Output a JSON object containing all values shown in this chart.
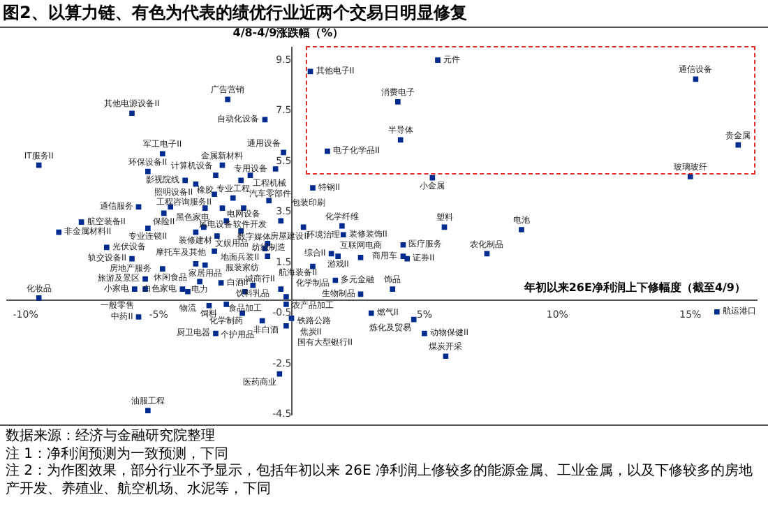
{
  "chart_data": {
    "type": "scatter",
    "title": "图2、以算力链、有色为代表的绩优行业近两个交易日明显修复",
    "xlabel": "年初以来26E净利润上下修幅度（截至4/9）",
    "ylabel": "4/8-4/9涨跌幅（%）",
    "color": "#002b8f",
    "marker": "square",
    "xlim": [
      -10.7,
      17.5
    ],
    "ylim": [
      -4.5,
      10
    ],
    "xticks": [
      {
        "value": -10,
        "label": "-10%"
      },
      {
        "value": -5,
        "label": "-5%"
      },
      {
        "value": 5,
        "label": "5%"
      },
      {
        "value": 10,
        "label": "10%"
      },
      {
        "value": 15,
        "label": "15%"
      }
    ],
    "yticks": [
      -4.5,
      -2.5,
      -0.5,
      1.5,
      3.5,
      5.5,
      7.5,
      9.5
    ],
    "x": [
      0.71,
      -2.4,
      -6.0,
      -1.0,
      1.35,
      -0.3,
      -4.85,
      -9.5,
      -2.6,
      -0.6,
      -5.4,
      -2.85,
      -1.55,
      -1.9,
      -4.0,
      -3.6,
      0.8,
      -2.9,
      5.5,
      15.2,
      4.0,
      4.1,
      16.8,
      5.3,
      15.0,
      -2.2,
      -0.85,
      -5.75,
      -4.55,
      -3.25,
      -2.6,
      -1.8,
      -4.8,
      -7.9,
      -2.45,
      -0.4,
      -5.4,
      0.45,
      1.9,
      1.95,
      -8.75,
      -3.6,
      -3.3,
      -2.8,
      -1.9,
      -6.95,
      -0.9,
      1.5,
      1.75,
      -2.9,
      -1.0,
      -0.9,
      2.6,
      -6.0,
      -3.6,
      -3.25,
      0.8,
      -4.85,
      -5.5,
      -5.9,
      -3.45,
      -2.65,
      1.65,
      -4.1,
      -5.5,
      -1.45,
      2.6,
      -3.9,
      -1.75,
      -0.4,
      -9.5,
      -0.2,
      -3.1,
      -2.45,
      -0.2,
      3.0,
      -5.75,
      -1.85,
      -1.1,
      0,
      -2.85,
      -0.2,
      -0.45,
      -5.4,
      5.0,
      5.8,
      4.6,
      16.0,
      5.75,
      8.65,
      4.2,
      7.35,
      4.2,
      4.35,
      3.8
    ],
    "values": [
      9.05,
      7.95,
      7.4,
      7.15,
      5.9,
      5.85,
      5.8,
      5.35,
      5.35,
      5.2,
      5.1,
      4.95,
      4.95,
      4.75,
      4.75,
      4.6,
      4.45,
      4.2,
      9.5,
      8.75,
      7.85,
      6.35,
      6.15,
      4.85,
      4.9,
      4.05,
      3.95,
      3.7,
      3.7,
      3.65,
      3.65,
      3.65,
      3.45,
      3.1,
      3.15,
      3.15,
      2.85,
      2.9,
      2.95,
      2.6,
      2.7,
      2.7,
      2.9,
      2.55,
      2.75,
      2.1,
      2.25,
      1.85,
      1.75,
      1.95,
      2.05,
      1.75,
      1.7,
      1.65,
      1.45,
      1.4,
      1.35,
      1.25,
      0.85,
      0.45,
      0.75,
      0.7,
      0.8,
      0.45,
      0.45,
      0.6,
      0.25,
      0.35,
      0.35,
      0.45,
      0.1,
      0.15,
      -0.2,
      -0.15,
      -0.15,
      -0.5,
      -0.65,
      -0.5,
      -0.8,
      -0.7,
      -1.3,
      -1.0,
      -2.9,
      -4.35,
      -1.3,
      -2.2,
      -0.75,
      -0.45,
      2.9,
      2.8,
      2.2,
      1.85,
      1.75,
      1.65,
      0.45
    ],
    "annotations": [
      {
        "text": "其他电子II",
        "x": 0.71,
        "y": 9.05
      },
      {
        "text": "广告营销",
        "x": -2.4,
        "y": 7.95
      },
      {
        "text": "其他电源设备II",
        "x": -6.0,
        "y": 7.4
      },
      {
        "text": "自动化设备",
        "x": -1.0,
        "y": 7.15
      },
      {
        "text": "电子化学品II",
        "x": 1.35,
        "y": 5.9
      },
      {
        "text": "通用设备",
        "x": -0.3,
        "y": 5.85
      },
      {
        "text": "军工电子II",
        "x": -4.85,
        "y": 5.8
      },
      {
        "text": "IT服务II",
        "x": -9.5,
        "y": 5.35
      },
      {
        "text": "金属新材料",
        "x": -2.6,
        "y": 5.35
      },
      {
        "text": "专用设备",
        "x": -0.6,
        "y": 5.2
      },
      {
        "text": "环保设备II",
        "x": -5.4,
        "y": 5.1
      },
      {
        "text": "计算机设备",
        "x": -2.85,
        "y": 4.95
      },
      {
        "text": "工程机械",
        "x": -1.55,
        "y": 4.95
      },
      {
        "text": "汽车零部件",
        "x": -1.9,
        "y": 4.75
      },
      {
        "text": "影视院线",
        "x": -4.0,
        "y": 4.75
      },
      {
        "text": "照明设备II",
        "x": -3.6,
        "y": 4.6
      },
      {
        "text": "特钢II",
        "x": 0.8,
        "y": 4.45
      },
      {
        "text": "工程咨询服务II",
        "x": -2.9,
        "y": 4.2
      },
      {
        "text": "元件",
        "x": 5.5,
        "y": 9.5
      },
      {
        "text": "通信设备",
        "x": 15.2,
        "y": 8.75
      },
      {
        "text": "消费电子",
        "x": 4.0,
        "y": 7.85
      },
      {
        "text": "半导体",
        "x": 4.1,
        "y": 6.35
      },
      {
        "text": "贵金属",
        "x": 16.8,
        "y": 6.15
      },
      {
        "text": "小金属",
        "x": 5.3,
        "y": 4.85
      },
      {
        "text": "玻璃玻纤",
        "x": 15.0,
        "y": 4.9
      },
      {
        "text": "专业工程",
        "x": -2.2,
        "y": 4.05
      },
      {
        "text": "电网设备",
        "x": -0.85,
        "y": 3.95
      },
      {
        "text": "通信服务",
        "x": -5.75,
        "y": 3.7
      },
      {
        "text": "黑色家电",
        "x": -4.55,
        "y": 3.7
      },
      {
        "text": "橡胶",
        "x": -3.25,
        "y": 3.65
      },
      {
        "text": "软件开发",
        "x": -2.6,
        "y": 3.65
      },
      {
        "text": "风电设备",
        "x": -1.8,
        "y": 3.65
      },
      {
        "text": "保险II",
        "x": -4.8,
        "y": 3.45
      },
      {
        "text": "航空装备II",
        "x": -7.9,
        "y": 3.1
      },
      {
        "text": "数字媒体",
        "x": -2.45,
        "y": 3.15
      },
      {
        "text": "包装印刷",
        "x": -0.4,
        "y": 3.15
      },
      {
        "text": "专业连锁II",
        "x": -5.4,
        "y": 2.85
      },
      {
        "text": "环境治理",
        "x": 0.45,
        "y": 2.9
      },
      {
        "text": "化学纤维",
        "x": 1.9,
        "y": 2.95
      },
      {
        "text": "装修装饰II",
        "x": 1.95,
        "y": 2.6
      },
      {
        "text": "非金属材料II",
        "x": -8.75,
        "y": 2.7
      },
      {
        "text": "装修建材",
        "x": -3.6,
        "y": 2.7
      },
      {
        "text": "文娱用品",
        "x": -3.3,
        "y": 2.9
      },
      {
        "text": "摩托车及其他",
        "x": -2.8,
        "y": 2.55
      },
      {
        "text": "纺织制造",
        "x": -1.9,
        "y": 2.75
      },
      {
        "text": "光伏设备",
        "x": -6.95,
        "y": 2.1
      },
      {
        "text": "地面兵装II",
        "x": -0.9,
        "y": 2.25
      },
      {
        "text": "综合II",
        "x": 1.5,
        "y": 1.85
      },
      {
        "text": "游戏II",
        "x": 1.75,
        "y": 1.75
      },
      {
        "text": "服装家纺",
        "x": -2.9,
        "y": 1.95
      },
      {
        "text": "房屋建设II",
        "x": -1.0,
        "y": 2.05
      },
      {
        "text": "航海装备II",
        "x": -0.9,
        "y": 1.75
      },
      {
        "text": "互联网电商",
        "x": 2.6,
        "y": 1.7
      },
      {
        "text": "轨交设备II",
        "x": -6.0,
        "y": 1.65
      },
      {
        "text": "休闲食品",
        "x": -3.6,
        "y": 1.45
      },
      {
        "text": "家居用品",
        "x": -3.25,
        "y": 1.4
      },
      {
        "text": "化学制品",
        "x": 0.8,
        "y": 1.35
      },
      {
        "text": "房地产服务",
        "x": -4.85,
        "y": 1.25
      },
      {
        "text": "旅游及景区",
        "x": -5.5,
        "y": 0.85
      },
      {
        "text": "小家电",
        "x": -5.9,
        "y": 0.45
      },
      {
        "text": "电力",
        "x": -3.45,
        "y": 0.75
      },
      {
        "text": "白酒II",
        "x": -2.65,
        "y": 0.7
      },
      {
        "text": "多元金融",
        "x": 1.65,
        "y": 0.8
      },
      {
        "text": "白色家电",
        "x": -4.1,
        "y": 0.45
      },
      {
        "text": "一般零售",
        "x": -5.5,
        "y": 0.45
      },
      {
        "text": "饮料乳品",
        "x": -1.45,
        "y": 0.6
      },
      {
        "text": "生物制品",
        "x": 2.6,
        "y": 0.25
      },
      {
        "text": "物流",
        "x": -3.9,
        "y": 0.35
      },
      {
        "text": "食品加工",
        "x": -1.75,
        "y": 0.35
      },
      {
        "text": "农产品加工",
        "x": -0.4,
        "y": 0.45
      },
      {
        "text": "化妆品",
        "x": -9.5,
        "y": 0.1
      },
      {
        "text": "城商行II",
        "x": -0.2,
        "y": 0.15
      },
      {
        "text": "饲料",
        "x": -3.1,
        "y": -0.2
      },
      {
        "text": "化学制药",
        "x": -2.45,
        "y": -0.15
      },
      {
        "text": "铁路公路",
        "x": -0.2,
        "y": -0.15
      },
      {
        "text": "燃气II",
        "x": 3.0,
        "y": -0.5
      },
      {
        "text": "中药II",
        "x": -5.75,
        "y": -0.65
      },
      {
        "text": "非白酒",
        "x": -1.85,
        "y": -0.5
      },
      {
        "text": "个护用品",
        "x": -1.1,
        "y": -0.8
      },
      {
        "text": "焦炭II",
        "x": 0,
        "y": -0.7
      },
      {
        "text": "厨卫电器",
        "x": -2.85,
        "y": -1.3
      },
      {
        "text": "国有大型银行II",
        "x": -0.2,
        "y": -1.0
      },
      {
        "text": "医药商业",
        "x": -0.45,
        "y": -2.9
      },
      {
        "text": "油服工程",
        "x": -5.4,
        "y": -4.35
      },
      {
        "text": "动物保健II",
        "x": 5.0,
        "y": -1.3
      },
      {
        "text": "煤炭开采",
        "x": 5.8,
        "y": -2.2
      },
      {
        "text": "炼化及贸易",
        "x": 4.6,
        "y": -0.75
      },
      {
        "text": "航运港口",
        "x": 16.0,
        "y": -0.45
      },
      {
        "text": "塑料",
        "x": 5.75,
        "y": 2.9
      },
      {
        "text": "电池",
        "x": 8.65,
        "y": 2.8
      },
      {
        "text": "医疗服务",
        "x": 4.2,
        "y": 2.2
      },
      {
        "text": "农化制品",
        "x": 7.35,
        "y": 1.85
      },
      {
        "text": "商用车",
        "x": 4.2,
        "y": 1.75
      },
      {
        "text": "证券II",
        "x": 4.35,
        "y": 1.65
      },
      {
        "text": "饰品",
        "x": 3.8,
        "y": 0.45
      },
      "数据来源：经济与金融研究院整理",
      "注 1：净利润预测为一致预测，下同",
      "注 2：为作图效果，部分行业不予显示，包括年初以来 26E 净利润上修较多的能源金属、工业金属，以及下修较多的房地产开发、养殖业、航空机场、水泥等，下同"
    ]
  }
}
